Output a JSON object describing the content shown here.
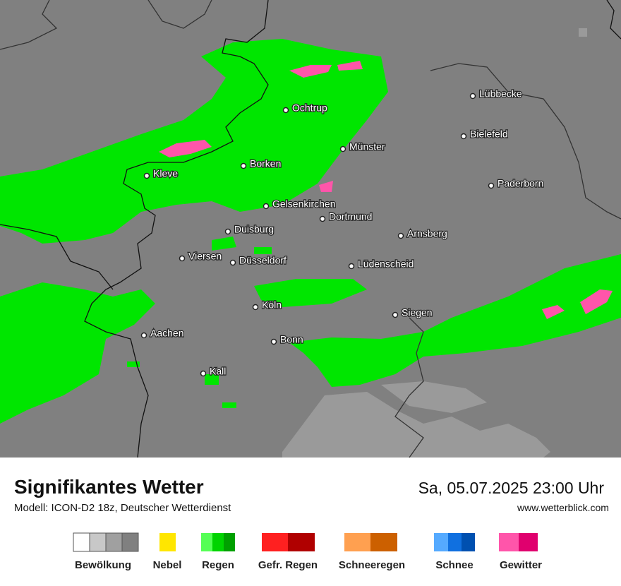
{
  "map": {
    "cities": [
      "Lübbecke",
      "Ochtrup",
      "Bielefeld",
      "Münster",
      "Borken",
      "Kleve",
      "Paderborn",
      "Gelsenkirchen",
      "Dortmund",
      "Duisburg",
      "Arnsberg",
      "Viersen",
      "Düsseldorf",
      "Lüdenscheid",
      "Köln",
      "Siegen",
      "Aachen",
      "Bonn",
      "Kall"
    ]
  },
  "footer": {
    "title": "Signifikantes Wetter",
    "subtitle": "Modell: ICON-D2 18z, Deutscher Wetterdienst",
    "datetime": "Sa, 05.07.2025 23:00 Uhr",
    "website": "www.wetterblick.com"
  },
  "legend": {
    "labels": [
      "Bewölkung",
      "Nebel",
      "Regen",
      "Gefr. Regen",
      "Schneeregen",
      "Schnee",
      "Gewitter"
    ]
  }
}
